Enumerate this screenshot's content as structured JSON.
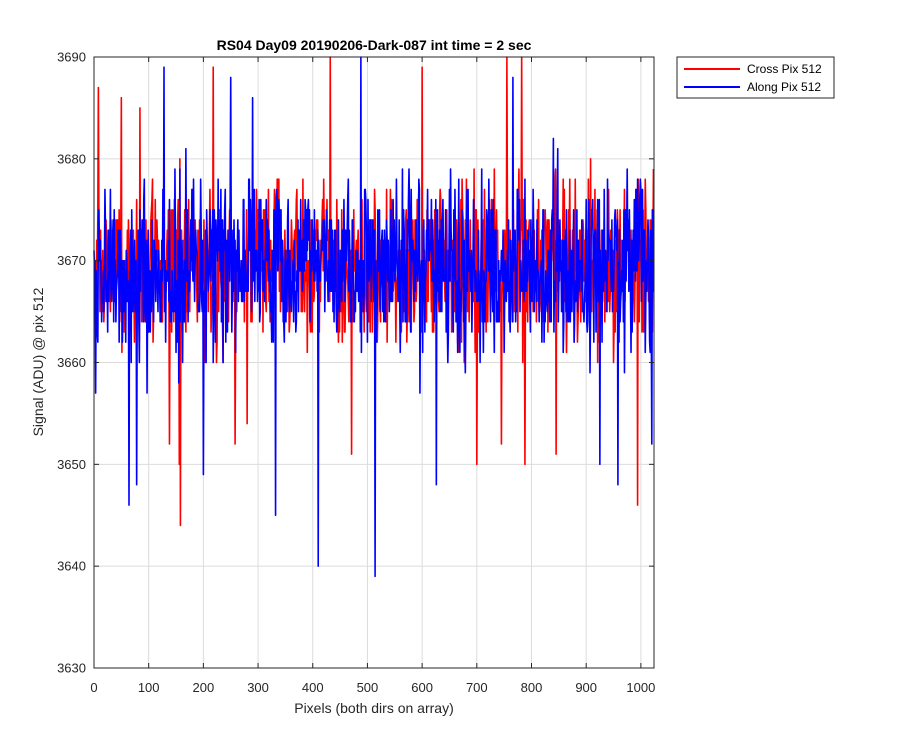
{
  "chart_data": {
    "type": "line",
    "title": "RS04 Day09 20190206-Dark-087 int time = 2 sec",
    "xlabel": "Pixels (both dirs on array)",
    "ylabel": "Signal (ADU) @ pix 512",
    "xlim": [
      0,
      1024
    ],
    "ylim": [
      3630,
      3690
    ],
    "xticks": [
      0,
      100,
      200,
      300,
      400,
      500,
      600,
      700,
      800,
      900,
      1000
    ],
    "yticks": [
      3630,
      3640,
      3650,
      3660,
      3670,
      3680,
      3690
    ],
    "grid": true,
    "legend_position": "outside-top-right",
    "n_points": 1024,
    "series": [
      {
        "name": "Cross Pix 512",
        "color": "#ff0000",
        "mean": 3669,
        "noise_band": [
          3658,
          3681
        ],
        "extremes": [
          {
            "x": 8,
            "y": 3687
          },
          {
            "x": 50,
            "y": 3686
          },
          {
            "x": 84,
            "y": 3685
          },
          {
            "x": 138,
            "y": 3652
          },
          {
            "x": 156,
            "y": 3650
          },
          {
            "x": 158,
            "y": 3644
          },
          {
            "x": 218,
            "y": 3689
          },
          {
            "x": 258,
            "y": 3652
          },
          {
            "x": 280,
            "y": 3654
          },
          {
            "x": 432,
            "y": 3690
          },
          {
            "x": 471,
            "y": 3651
          },
          {
            "x": 600,
            "y": 3689
          },
          {
            "x": 700,
            "y": 3650
          },
          {
            "x": 745,
            "y": 3652
          },
          {
            "x": 755,
            "y": 3690
          },
          {
            "x": 782,
            "y": 3690
          },
          {
            "x": 788,
            "y": 3650
          },
          {
            "x": 845,
            "y": 3651
          },
          {
            "x": 994,
            "y": 3646
          }
        ]
      },
      {
        "name": "Along Pix 512",
        "color": "#0000ff",
        "mean": 3669,
        "noise_band": [
          3657,
          3682
        ],
        "extremes": [
          {
            "x": 3,
            "y": 3657
          },
          {
            "x": 64,
            "y": 3646
          },
          {
            "x": 78,
            "y": 3648
          },
          {
            "x": 128,
            "y": 3689
          },
          {
            "x": 200,
            "y": 3649
          },
          {
            "x": 250,
            "y": 3688
          },
          {
            "x": 290,
            "y": 3686
          },
          {
            "x": 332,
            "y": 3645
          },
          {
            "x": 410,
            "y": 3640
          },
          {
            "x": 488,
            "y": 3690
          },
          {
            "x": 514,
            "y": 3639
          },
          {
            "x": 626,
            "y": 3648
          },
          {
            "x": 766,
            "y": 3688
          },
          {
            "x": 925,
            "y": 3650
          },
          {
            "x": 958,
            "y": 3648
          },
          {
            "x": 1020,
            "y": 3652
          }
        ]
      }
    ]
  },
  "colors": {
    "axes_color": "#262626",
    "grid_color": "#dcdcdc",
    "background": "#ffffff"
  }
}
